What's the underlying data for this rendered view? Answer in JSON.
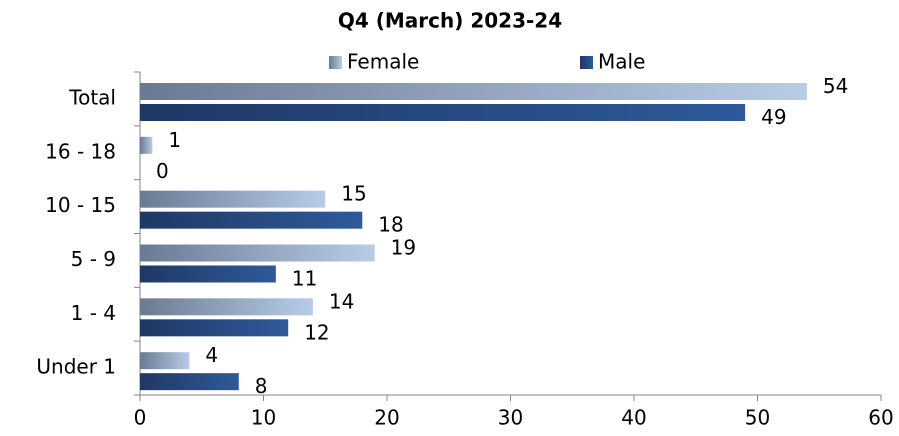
{
  "chart_data": {
    "type": "hbar",
    "title": "Q4 (March) 2023-24",
    "categories": [
      "Total",
      "16 - 18",
      "10 - 15",
      "5 - 9",
      "1 - 4",
      "Under 1"
    ],
    "series": [
      {
        "name": "Female",
        "color": "#b8cce8",
        "values": [
          54,
          1,
          15,
          19,
          14,
          4
        ]
      },
      {
        "name": "Male",
        "color": "#2e5a9a",
        "values": [
          49,
          0,
          18,
          11,
          12,
          8
        ]
      }
    ],
    "xlim": [
      0,
      60
    ],
    "xticks": [
      0,
      10,
      20,
      30,
      40,
      50,
      60
    ]
  }
}
